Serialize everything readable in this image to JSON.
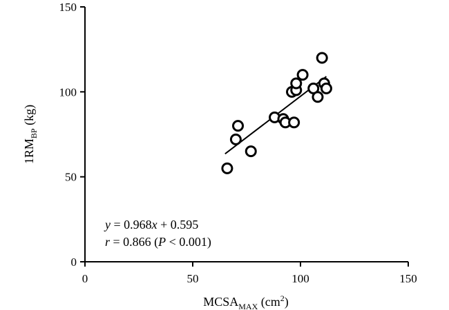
{
  "chart_data": {
    "type": "scatter",
    "title": "",
    "xlabel": {
      "main": "MCSA",
      "sub": "MAX",
      "unit_prefix": " (cm",
      "unit_sup": "2",
      "unit_suffix": ")"
    },
    "ylabel": {
      "main": "1RM",
      "sub": "BP",
      "unit": " (kg)"
    },
    "xlim": [
      0,
      150
    ],
    "ylim": [
      0,
      150
    ],
    "xticks": [
      "0",
      "50",
      "100",
      "150"
    ],
    "yticks": [
      "0",
      "50",
      "100",
      "150"
    ],
    "grid": false,
    "points": [
      {
        "x": 66,
        "y": 55
      },
      {
        "x": 70,
        "y": 72
      },
      {
        "x": 71,
        "y": 80
      },
      {
        "x": 77,
        "y": 65
      },
      {
        "x": 88,
        "y": 85
      },
      {
        "x": 92,
        "y": 84
      },
      {
        "x": 93,
        "y": 82
      },
      {
        "x": 97,
        "y": 82
      },
      {
        "x": 96,
        "y": 100
      },
      {
        "x": 98,
        "y": 101
      },
      {
        "x": 98,
        "y": 105
      },
      {
        "x": 101,
        "y": 110
      },
      {
        "x": 106,
        "y": 102
      },
      {
        "x": 108,
        "y": 97
      },
      {
        "x": 110,
        "y": 120
      },
      {
        "x": 111,
        "y": 105
      },
      {
        "x": 112,
        "y": 102
      }
    ],
    "fit_line": {
      "slope": 0.968,
      "intercept": 0.595,
      "x_range": [
        65,
        112
      ]
    },
    "annotations": {
      "equation": {
        "y": "y",
        "eq": " = 0.968",
        "x": "x",
        "rest": " + 0.595"
      },
      "correlation": {
        "r": "r",
        "eq": " = 0.866 (",
        "p": "P",
        "rest": " < 0.001)"
      }
    }
  }
}
